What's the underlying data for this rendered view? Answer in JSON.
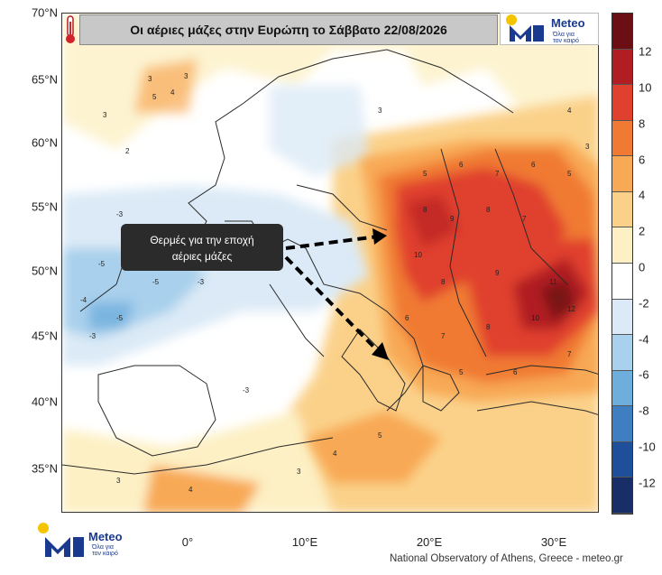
{
  "title": "Οι αέριες μάζες στην Ευρώπη το Σάββατο 22/08/2026",
  "callout": {
    "line1": "Θερμές για την εποχή",
    "line2": "αέριες μάζες"
  },
  "logo": {
    "brand": "Meteo",
    "tagline_line1": "Όλα για",
    "tagline_line2": "τον καιρό"
  },
  "credit": "National Observatory of Athens, Greece - meteo.gr",
  "latitude_labels": [
    "70°N",
    "65°N",
    "60°N",
    "55°N",
    "50°N",
    "45°N",
    "40°N",
    "35°N"
  ],
  "longitude_labels": [
    "0°",
    "10°E",
    "20°E",
    "30°E"
  ],
  "colorbar": {
    "ticks": [
      "12",
      "10",
      "8",
      "6",
      "4",
      "2",
      "0",
      "-2",
      "-4",
      "-6",
      "-8",
      "-10",
      "-12"
    ],
    "colors": [
      "#6b0f14",
      "#b01e24",
      "#e0412e",
      "#f07a33",
      "#f8a955",
      "#fbd18a",
      "#fdf0c4",
      "#ffffff",
      "#dbeaf6",
      "#a9d0ec",
      "#6eaedd",
      "#3f7fc1",
      "#1f4f9a",
      "#172f66"
    ]
  },
  "icons": [
    "thermometer-icon",
    "meteo-logo-icon",
    "arrow-icon"
  ],
  "anomaly_field_labels": [
    "3",
    "5",
    "4",
    "3",
    "5",
    "6",
    "2",
    "3",
    "4",
    "5",
    "6",
    "8",
    "7",
    "5",
    "4",
    "3",
    "-3",
    "-4",
    "-5",
    "-3",
    "-4",
    "-5",
    "-3",
    "8",
    "9",
    "10",
    "11",
    "6",
    "5",
    "4",
    "7",
    "8",
    "9",
    "10",
    "12",
    "11",
    "3"
  ]
}
